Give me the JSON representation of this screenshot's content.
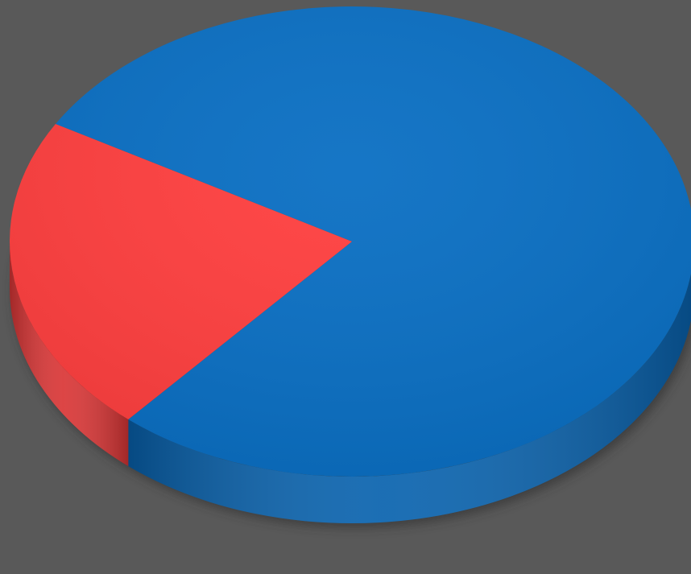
{
  "chart_data": {
    "type": "pie",
    "style": "3d",
    "categories": [
      "",
      ""
    ],
    "values": [
      78,
      22
    ],
    "colors": [
      "#0A6FC3",
      "#FF3F3F"
    ],
    "side_colors": [
      "#0862AE",
      "#D93535"
    ],
    "background": "#595959",
    "title": "",
    "legend": "none",
    "data_labels": false
  }
}
